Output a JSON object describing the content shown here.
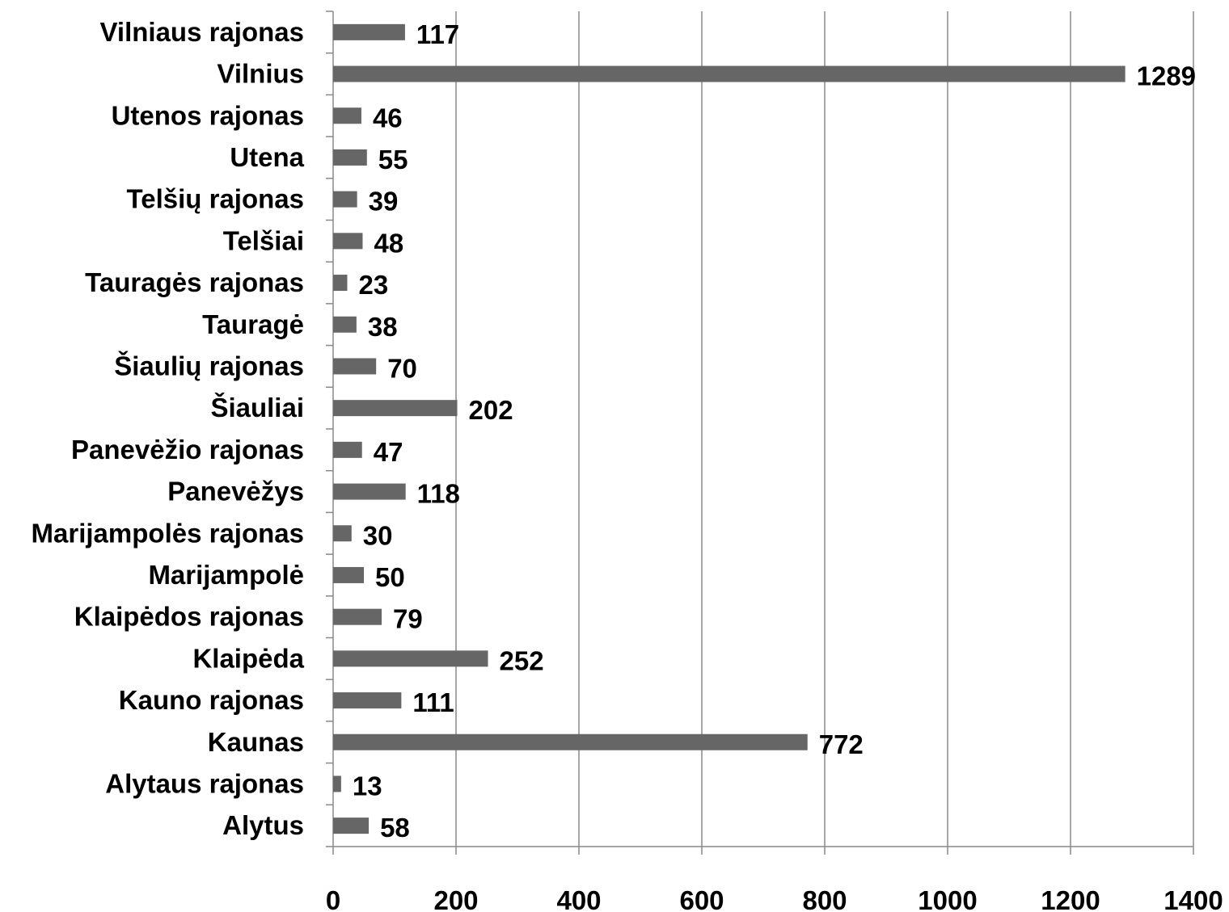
{
  "chart_data": {
    "type": "bar",
    "orientation": "horizontal",
    "categories": [
      "Vilniaus rajonas",
      "Vilnius",
      "Utenos rajonas",
      "Utena",
      "Telšių rajonas",
      "Telšiai",
      "Tauragės rajonas",
      "Tauragė",
      "Šiaulių rajonas",
      "Šiauliai",
      "Panevėžio rajonas",
      "Panevėžys",
      "Marijampolės rajonas",
      "Marijampolė",
      "Klaipėdos rajonas",
      "Klaipėda",
      "Kauno rajonas",
      "Kaunas",
      "Alytaus rajonas",
      "Alytus"
    ],
    "values": [
      117,
      1289,
      46,
      55,
      39,
      48,
      23,
      38,
      70,
      202,
      47,
      118,
      30,
      50,
      79,
      252,
      111,
      772,
      13,
      58
    ],
    "xlim": [
      0,
      1400
    ],
    "x_ticks": [
      "0",
      "200",
      "400",
      "600",
      "800",
      "1000",
      "1200",
      "1400"
    ],
    "grid": "vertical",
    "bar_color": "#666666",
    "grid_color": "#888888"
  }
}
